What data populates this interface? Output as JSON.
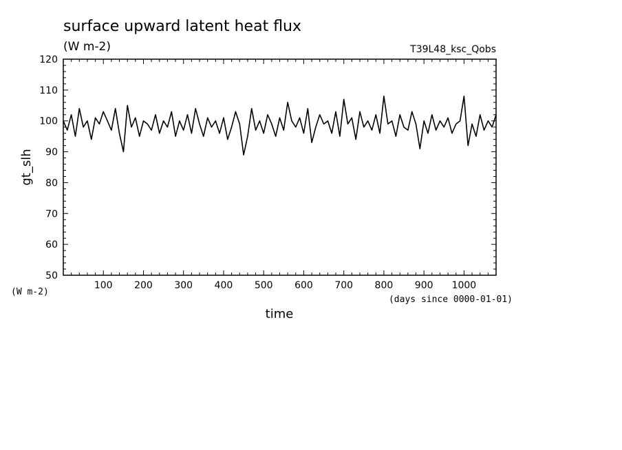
{
  "chart_data": {
    "type": "line",
    "title": "surface upward latent heat flux",
    "units": "(W m-2)",
    "run_label": "T39L48_ksc_Qobs",
    "xlabel": "time",
    "xunits": "(days since 0000-01-01)",
    "ylabel": "gt_slh",
    "yunits": "(W m-2)",
    "xlim": [
      0,
      1080
    ],
    "ylim": [
      50,
      120
    ],
    "xticks": [
      100,
      200,
      300,
      400,
      500,
      600,
      700,
      800,
      900,
      1000
    ],
    "yticks": [
      50,
      60,
      70,
      80,
      90,
      100,
      110,
      120
    ],
    "grid": false,
    "series": [
      {
        "x": [
          0,
          10,
          20,
          30,
          40,
          50,
          60,
          70,
          80,
          90,
          100,
          110,
          120,
          130,
          140,
          150,
          160,
          170,
          180,
          190,
          200,
          210,
          220,
          230,
          240,
          250,
          260,
          270,
          280,
          290,
          300,
          310,
          320,
          330,
          340,
          350,
          360,
          370,
          380,
          390,
          400,
          410,
          420,
          430,
          440,
          450,
          460,
          470,
          480,
          490,
          500,
          510,
          520,
          530,
          540,
          550,
          560,
          570,
          580,
          590,
          600,
          610,
          620,
          630,
          640,
          650,
          660,
          670,
          680,
          690,
          700,
          710,
          720,
          730,
          740,
          750,
          760,
          770,
          780,
          790,
          800,
          810,
          820,
          830,
          840,
          850,
          860,
          870,
          880,
          890,
          900,
          910,
          920,
          930,
          940,
          950,
          960,
          970,
          980,
          990,
          1000,
          1010,
          1020,
          1030,
          1040,
          1050,
          1060,
          1070,
          1080
        ],
        "y": [
          100,
          97,
          102,
          95,
          104,
          98,
          100,
          94,
          101,
          99,
          103,
          100,
          97,
          104,
          96,
          90,
          105,
          98,
          101,
          95,
          100,
          99,
          97,
          102,
          96,
          100,
          98,
          103,
          95,
          100,
          97,
          102,
          96,
          104,
          99,
          95,
          101,
          98,
          100,
          96,
          101,
          94,
          98,
          103,
          99,
          89,
          95,
          104,
          97,
          100,
          96,
          102,
          99,
          95,
          101,
          97,
          106,
          100,
          98,
          101,
          96,
          104,
          93,
          98,
          102,
          99,
          100,
          96,
          103,
          95,
          107,
          99,
          101,
          94,
          103,
          98,
          100,
          97,
          102,
          96,
          108,
          99,
          100,
          95,
          102,
          98,
          97,
          103,
          99,
          91,
          100,
          96,
          102,
          97,
          100,
          98,
          101,
          96,
          99,
          100,
          108,
          92,
          99,
          95,
          102,
          97,
          100,
          98,
          102
        ]
      }
    ]
  }
}
